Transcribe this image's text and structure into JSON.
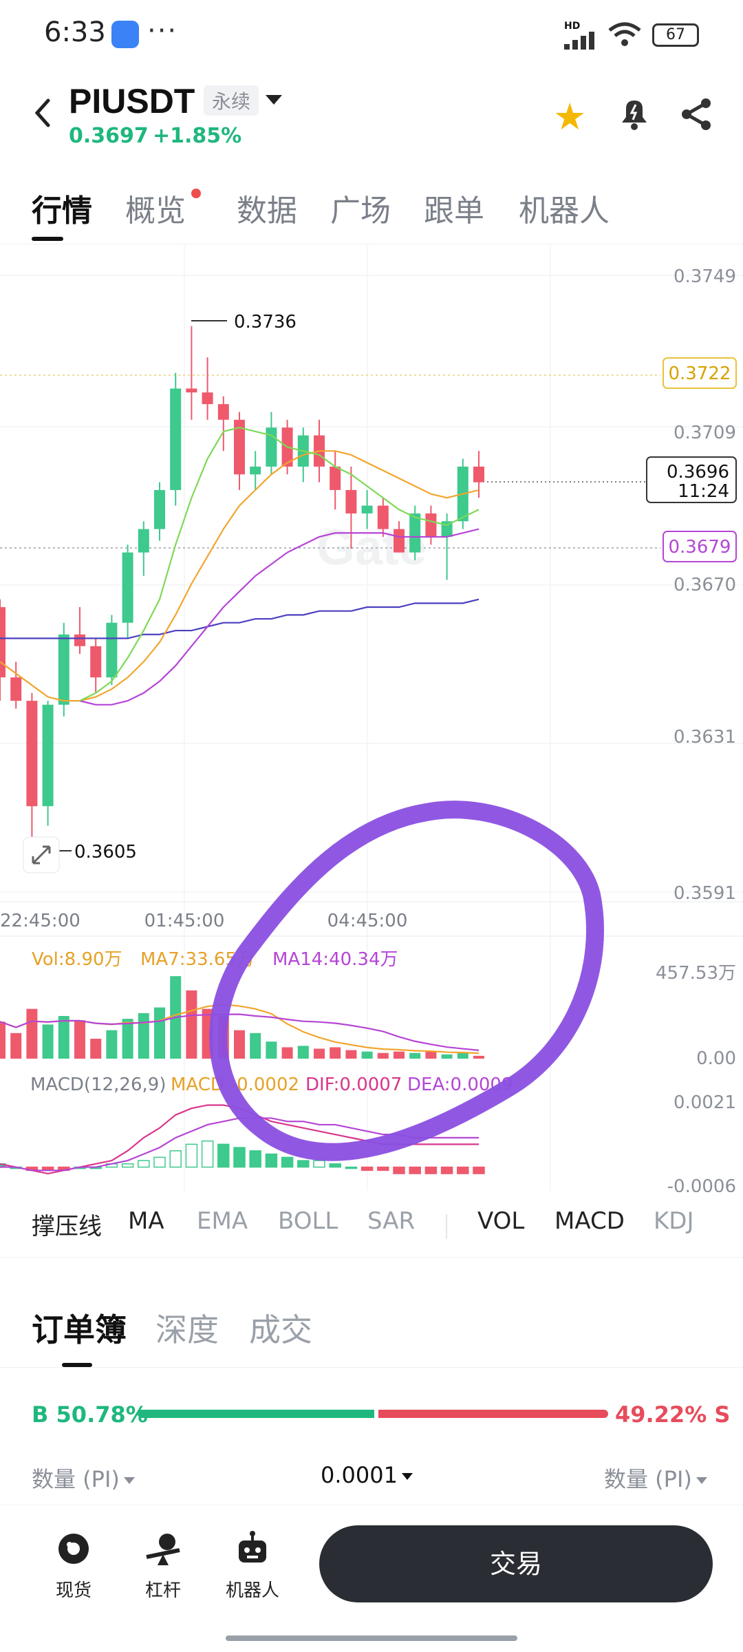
{
  "status_bar": {
    "time": "6:33",
    "dots": "···",
    "network": "HD",
    "battery": "67"
  },
  "header": {
    "pair": "PIUSDT",
    "contract_type": "永续",
    "last_price": "0.3697",
    "change": "+1.85%"
  },
  "tabs": [
    {
      "label": "行情",
      "active": true
    },
    {
      "label": "概览",
      "active": false,
      "has_dot": true
    },
    {
      "label": "数据",
      "active": false
    },
    {
      "label": "广场",
      "active": false
    },
    {
      "label": "跟单",
      "active": false
    },
    {
      "label": "机器人",
      "active": false
    }
  ],
  "chart": {
    "price_axis": [
      "0.3749",
      "0.3709",
      "0.3670",
      "0.3631",
      "0.3591"
    ],
    "tag_yellow": "0.3722",
    "tag_current_price": "0.3696",
    "tag_countdown": "11:24",
    "tag_purple": "0.3679",
    "high_label": "0.3736",
    "low_label": "0.3605",
    "time_axis": [
      "22:45:00",
      "01:45:00",
      "04:45:00"
    ],
    "watermark": "Gate",
    "vol_legend": {
      "vol": "Vol:8.90万",
      "ma7": "MA7:33.65万",
      "ma14": "MA14:40.34万"
    },
    "vol_axis": [
      "457.53万",
      "0.00"
    ],
    "macd_legend": {
      "title": "MACD(12,26,9)",
      "macd": "MACD:-0.0002",
      "dif": "DIF:0.0007",
      "dea": "DEA:0.0009"
    },
    "macd_axis": [
      "0.0021",
      "-0.0006"
    ],
    "colors": {
      "up": "#3ec98d",
      "down": "#ee5a6c",
      "ma_green": "#7ed957",
      "ma_orange": "#f2a52e",
      "ma_purple": "#b545d6",
      "ma_indigo": "#4b3fbf",
      "annotation": "#8a4fe0"
    }
  },
  "chart_data": {
    "type": "candlestick",
    "candles": [
      {
        "o": 0.3664,
        "h": 0.3666,
        "l": 0.364,
        "c": 0.3646
      },
      {
        "o": 0.3646,
        "h": 0.365,
        "l": 0.3638,
        "c": 0.364
      },
      {
        "o": 0.364,
        "h": 0.3642,
        "l": 0.3605,
        "c": 0.3613
      },
      {
        "o": 0.3613,
        "h": 0.364,
        "l": 0.3608,
        "c": 0.3639
      },
      {
        "o": 0.3639,
        "h": 0.366,
        "l": 0.3636,
        "c": 0.3657
      },
      {
        "o": 0.3657,
        "h": 0.3664,
        "l": 0.3652,
        "c": 0.3654
      },
      {
        "o": 0.3654,
        "h": 0.3656,
        "l": 0.3642,
        "c": 0.3646
      },
      {
        "o": 0.3646,
        "h": 0.3662,
        "l": 0.3644,
        "c": 0.366
      },
      {
        "o": 0.366,
        "h": 0.368,
        "l": 0.3656,
        "c": 0.3678
      },
      {
        "o": 0.3678,
        "h": 0.3686,
        "l": 0.3672,
        "c": 0.3684
      },
      {
        "o": 0.3684,
        "h": 0.3696,
        "l": 0.3681,
        "c": 0.3694
      },
      {
        "o": 0.3694,
        "h": 0.3724,
        "l": 0.369,
        "c": 0.372
      },
      {
        "o": 0.372,
        "h": 0.3736,
        "l": 0.3712,
        "c": 0.3719
      },
      {
        "o": 0.3719,
        "h": 0.3728,
        "l": 0.3712,
        "c": 0.3716
      },
      {
        "o": 0.3716,
        "h": 0.3718,
        "l": 0.3704,
        "c": 0.3712
      },
      {
        "o": 0.3712,
        "h": 0.3714,
        "l": 0.3694,
        "c": 0.3698
      },
      {
        "o": 0.3698,
        "h": 0.3704,
        "l": 0.3694,
        "c": 0.37
      },
      {
        "o": 0.37,
        "h": 0.3714,
        "l": 0.3698,
        "c": 0.371
      },
      {
        "o": 0.371,
        "h": 0.3712,
        "l": 0.3698,
        "c": 0.37
      },
      {
        "o": 0.37,
        "h": 0.371,
        "l": 0.3696,
        "c": 0.3708
      },
      {
        "o": 0.3708,
        "h": 0.3712,
        "l": 0.3696,
        "c": 0.37
      },
      {
        "o": 0.37,
        "h": 0.3704,
        "l": 0.3689,
        "c": 0.3694
      },
      {
        "o": 0.3694,
        "h": 0.37,
        "l": 0.3679,
        "c": 0.3688
      },
      {
        "o": 0.3688,
        "h": 0.3694,
        "l": 0.3684,
        "c": 0.369
      },
      {
        "o": 0.369,
        "h": 0.3692,
        "l": 0.3682,
        "c": 0.3684
      },
      {
        "o": 0.3684,
        "h": 0.3686,
        "l": 0.3678,
        "c": 0.3678
      },
      {
        "o": 0.3678,
        "h": 0.369,
        "l": 0.3676,
        "c": 0.3688
      },
      {
        "o": 0.3688,
        "h": 0.369,
        "l": 0.368,
        "c": 0.3682
      },
      {
        "o": 0.3682,
        "h": 0.3688,
        "l": 0.3671,
        "c": 0.3686
      },
      {
        "o": 0.3686,
        "h": 0.3702,
        "l": 0.3684,
        "c": 0.37
      },
      {
        "o": 0.37,
        "h": 0.3704,
        "l": 0.3692,
        "c": 0.3696
      }
    ],
    "ma_green": [
      null,
      null,
      null,
      null,
      null,
      0.364,
      0.3642,
      0.3645,
      0.3651,
      0.3658,
      0.3666,
      0.368,
      0.3692,
      0.3702,
      0.3709,
      0.371,
      0.3709,
      0.3708,
      0.3705,
      0.3704,
      0.3703,
      0.37,
      0.3698,
      0.3695,
      0.3692,
      0.3689,
      0.3687,
      0.3686,
      0.3685,
      0.3687,
      0.3689
    ],
    "ma_orange": [
      0.365,
      0.3647,
      0.3644,
      0.3641,
      0.364,
      0.364,
      0.3641,
      0.3643,
      0.3646,
      0.365,
      0.3655,
      0.3662,
      0.367,
      0.3677,
      0.3684,
      0.369,
      0.3694,
      0.3698,
      0.3701,
      0.3703,
      0.3704,
      0.3704,
      0.3703,
      0.3701,
      0.3699,
      0.3697,
      0.3695,
      0.3693,
      0.3692,
      0.3693,
      0.3694
    ],
    "ma_purple": [
      null,
      null,
      null,
      null,
      null,
      0.364,
      0.3639,
      0.3639,
      0.364,
      0.3642,
      0.3645,
      0.3649,
      0.3654,
      0.3659,
      0.3664,
      0.3668,
      0.3672,
      0.3675,
      0.3678,
      0.368,
      0.3682,
      0.3683,
      0.3683,
      0.3683,
      0.3683,
      0.3682,
      0.3682,
      0.3682,
      0.3682,
      0.3683,
      0.3684
    ],
    "ma_indigo": [
      0.3656,
      0.3656,
      0.3656,
      0.3656,
      0.3656,
      0.3656,
      0.3656,
      0.3656,
      0.3656,
      0.3657,
      0.3657,
      0.3658,
      0.3658,
      0.3659,
      0.366,
      0.366,
      0.3661,
      0.3661,
      0.3662,
      0.3662,
      0.3663,
      0.3663,
      0.3663,
      0.3664,
      0.3664,
      0.3664,
      0.3665,
      0.3665,
      0.3665,
      0.3665,
      0.3666
    ],
    "ylim": [
      0.3591,
      0.3749
    ],
    "volume": [
      2.6,
      1.8,
      3.5,
      2.4,
      3.0,
      2.7,
      1.4,
      2.0,
      2.8,
      3.2,
      3.6,
      5.8,
      4.8,
      3.5,
      3.0,
      2.0,
      1.8,
      1.2,
      0.8,
      0.9,
      0.7,
      0.8,
      0.6,
      0.5,
      0.4,
      0.5,
      0.4,
      0.5,
      0.3,
      0.4,
      0.2
    ],
    "vol_ylim": [
      0,
      457.53
    ],
    "macd_hist": [
      0.0001,
      0.0,
      -0.0001,
      -0.0001,
      -0.0001,
      0.0,
      0.0,
      0.0001,
      0.0001,
      0.0002,
      0.0003,
      0.0005,
      0.0007,
      0.0008,
      0.0007,
      0.0006,
      0.0005,
      0.0004,
      0.0003,
      0.0002,
      0.0002,
      0.0001,
      0.0,
      -0.0001,
      -0.0001,
      -0.0002,
      -0.0002,
      -0.0002,
      -0.0002,
      -0.0002,
      -0.0002
    ],
    "macd_dif": [
      0.0001,
      0.0,
      -0.0001,
      -0.0002,
      -0.0001,
      0.0,
      0.0001,
      0.0002,
      0.0005,
      0.0009,
      0.0012,
      0.0016,
      0.0018,
      0.0019,
      0.0019,
      0.0018,
      0.0016,
      0.0014,
      0.0013,
      0.0012,
      0.0011,
      0.001,
      0.0009,
      0.0008,
      0.0007,
      0.0007,
      0.0007,
      0.0007,
      0.0007,
      0.0007,
      0.0007
    ],
    "macd_dea": [
      0.0,
      0.0,
      -0.0001,
      -0.0001,
      -0.0001,
      0.0,
      0.0,
      0.0001,
      0.0002,
      0.0004,
      0.0006,
      0.0009,
      0.0011,
      0.0013,
      0.0014,
      0.0015,
      0.0015,
      0.0015,
      0.0014,
      0.0014,
      0.0013,
      0.0013,
      0.0012,
      0.0011,
      0.001,
      0.001,
      0.0009,
      0.0009,
      0.0009,
      0.0009,
      0.0009
    ],
    "macd_ylim": [
      -0.0006,
      0.0021
    ]
  },
  "indicators": {
    "main": [
      "撑压线",
      "MA",
      "EMA",
      "BOLL",
      "SAR"
    ],
    "sub": [
      "VOL",
      "MACD",
      "KDJ"
    ]
  },
  "orderbook": {
    "tabs": [
      "订单簿",
      "深度",
      "成交"
    ],
    "buy_label": "B 50.78%",
    "sell_label": "49.22% S",
    "buy_ratio": 0.5078,
    "qty_left": "数量 (PI)",
    "precision": "0.0001",
    "qty_right": "数量 (PI)"
  },
  "bottom_nav": {
    "items": [
      {
        "label": "现货",
        "icon": "coin-icon"
      },
      {
        "label": "杠杆",
        "icon": "leverage-icon"
      },
      {
        "label": "机器人",
        "icon": "robot-icon"
      }
    ],
    "trade_label": "交易"
  }
}
